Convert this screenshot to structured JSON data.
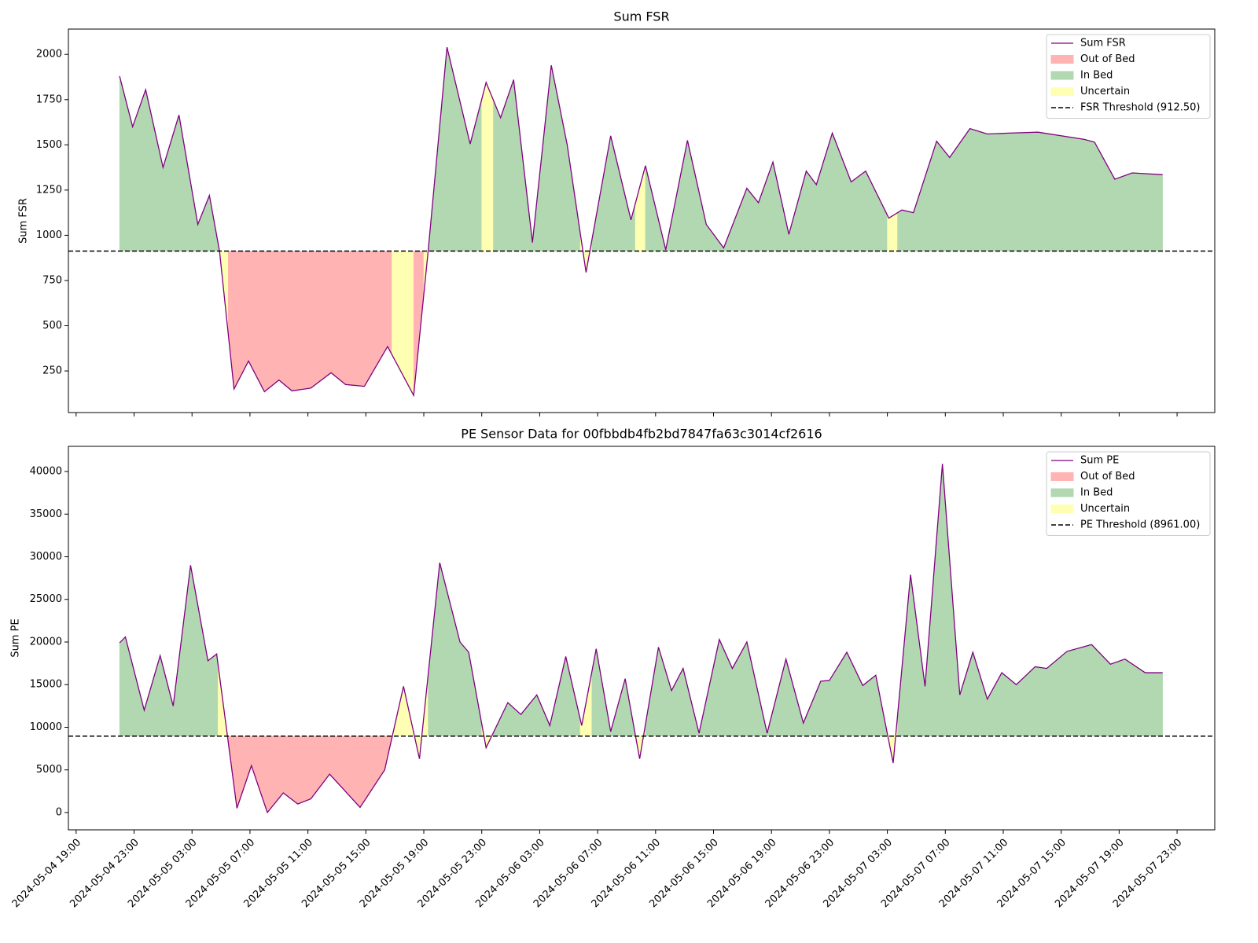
{
  "chart_data": [
    {
      "type": "line",
      "title": "Sum FSR",
      "ylabel": "Sum FSR",
      "x": [
        "2024-05-04 22:00",
        "2024-05-04 22:54",
        "2024-05-04 23:48",
        "2024-05-05 01:00",
        "2024-05-05 02:06",
        "2024-05-05 03:24",
        "2024-05-05 04:12",
        "2024-05-05 04:54",
        "2024-05-05 05:54",
        "2024-05-05 06:54",
        "2024-05-05 08:00",
        "2024-05-05 09:00",
        "2024-05-05 09:54",
        "2024-05-05 11:12",
        "2024-05-05 12:36",
        "2024-05-05 13:36",
        "2024-05-05 14:54",
        "2024-05-05 16:30",
        "2024-05-05 18:18",
        "2024-05-05 19:18",
        "2024-05-05 20:36",
        "2024-05-05 22:12",
        "2024-05-05 23:18",
        "2024-05-06 00:18",
        "2024-05-06 01:12",
        "2024-05-06 02:30",
        "2024-05-06 03:48",
        "2024-05-06 04:54",
        "2024-05-06 06:12",
        "2024-05-06 07:54",
        "2024-05-06 09:18",
        "2024-05-06 10:18",
        "2024-05-06 11:42",
        "2024-05-06 13:12",
        "2024-05-06 14:30",
        "2024-05-06 15:42",
        "2024-05-06 17:18",
        "2024-05-06 18:06",
        "2024-05-06 19:06",
        "2024-05-06 20:12",
        "2024-05-06 21:24",
        "2024-05-06 22:06",
        "2024-05-06 23:12",
        "2024-05-07 00:30",
        "2024-05-07 01:30",
        "2024-05-07 03:06",
        "2024-05-07 04:00",
        "2024-05-07 04:48",
        "2024-05-07 06:24",
        "2024-05-07 07:18",
        "2024-05-07 08:42",
        "2024-05-07 09:54",
        "2024-05-07 11:24",
        "2024-05-07 13:24",
        "2024-05-07 16:36",
        "2024-05-07 17:18",
        "2024-05-07 18:42",
        "2024-05-07 19:54",
        "2024-05-07 22:00"
      ],
      "series": [
        {
          "name": "Sum FSR",
          "color": "#800080",
          "values": [
            1880,
            1600,
            1805,
            1375,
            1665,
            1060,
            1220,
            912,
            150,
            305,
            135,
            200,
            140,
            155,
            240,
            175,
            165,
            385,
            115,
            912,
            2040,
            1505,
            1845,
            1650,
            1860,
            960,
            1940,
            1500,
            795,
            1550,
            1085,
            1385,
            920,
            1525,
            1060,
            930,
            1260,
            1180,
            1405,
            1005,
            1355,
            1280,
            1565,
            1295,
            1355,
            1095,
            1140,
            1125,
            1520,
            1430,
            1590,
            1560,
            1565,
            1570,
            1530,
            1515,
            1310,
            1345,
            1335
          ]
        }
      ],
      "threshold": {
        "value": 912.5,
        "label": "FSR Threshold (912.50)",
        "color": "#000000"
      },
      "region_states": [
        {
          "name": "Out of Bed",
          "color": "#ffb3b3"
        },
        {
          "name": "In Bed",
          "color": "#b2d8b2"
        },
        {
          "name": "Uncertain",
          "color": "#ffffb3"
        }
      ],
      "regions": [
        {
          "state": "In Bed",
          "start": "2024-05-04 22:00",
          "end": "2024-05-05 04:54"
        },
        {
          "state": "Uncertain",
          "start": "2024-05-05 04:54",
          "end": "2024-05-05 05:30"
        },
        {
          "state": "Out of Bed",
          "start": "2024-05-05 05:30",
          "end": "2024-05-05 16:48"
        },
        {
          "state": "Uncertain",
          "start": "2024-05-05 16:48",
          "end": "2024-05-05 18:18"
        },
        {
          "state": "Out of Bed",
          "start": "2024-05-05 18:18",
          "end": "2024-05-05 19:00"
        },
        {
          "state": "Uncertain",
          "start": "2024-05-05 19:00",
          "end": "2024-05-05 19:18"
        },
        {
          "state": "In Bed",
          "start": "2024-05-05 19:18",
          "end": "2024-05-05 23:00"
        },
        {
          "state": "Uncertain",
          "start": "2024-05-05 23:00",
          "end": "2024-05-05 23:48"
        },
        {
          "state": "In Bed",
          "start": "2024-05-05 23:48",
          "end": "2024-05-06 05:48"
        },
        {
          "state": "Uncertain",
          "start": "2024-05-06 05:48",
          "end": "2024-05-06 06:36"
        },
        {
          "state": "In Bed",
          "start": "2024-05-06 06:36",
          "end": "2024-05-06 09:36"
        },
        {
          "state": "Uncertain",
          "start": "2024-05-06 09:36",
          "end": "2024-05-06 10:18"
        },
        {
          "state": "In Bed",
          "start": "2024-05-06 10:18",
          "end": "2024-05-07 03:00"
        },
        {
          "state": "Uncertain",
          "start": "2024-05-07 03:00",
          "end": "2024-05-07 03:42"
        },
        {
          "state": "In Bed",
          "start": "2024-05-07 03:42",
          "end": "2024-05-07 22:00"
        }
      ],
      "xlim": [
        "2024-05-04 18:28",
        "2024-05-08 01:36"
      ],
      "xticks": [
        "2024-05-04 19:00",
        "2024-05-04 23:00",
        "2024-05-05 03:00",
        "2024-05-05 07:00",
        "2024-05-05 11:00",
        "2024-05-05 15:00",
        "2024-05-05 19:00",
        "2024-05-05 23:00",
        "2024-05-06 03:00",
        "2024-05-06 07:00",
        "2024-05-06 11:00",
        "2024-05-06 15:00",
        "2024-05-06 19:00",
        "2024-05-06 23:00",
        "2024-05-07 03:00",
        "2024-05-07 07:00",
        "2024-05-07 11:00",
        "2024-05-07 15:00",
        "2024-05-07 19:00",
        "2024-05-07 23:00"
      ],
      "ylim": [
        20,
        2140
      ],
      "yticks": [
        250,
        500,
        750,
        1000,
        1250,
        1500,
        1750,
        2000
      ],
      "legend": "upper right"
    },
    {
      "type": "line",
      "title": "PE Sensor Data for 00fbbdb4fb2bd7847fa63c3014cf2616",
      "ylabel": "Sum PE",
      "x": [
        "2024-05-04 22:00",
        "2024-05-04 22:24",
        "2024-05-04 23:42",
        "2024-05-05 00:48",
        "2024-05-05 01:42",
        "2024-05-05 02:54",
        "2024-05-05 04:06",
        "2024-05-05 04:42",
        "2024-05-05 06:06",
        "2024-05-05 07:06",
        "2024-05-05 08:12",
        "2024-05-05 09:18",
        "2024-05-05 10:18",
        "2024-05-05 11:12",
        "2024-05-05 12:30",
        "2024-05-05 14:36",
        "2024-05-05 16:18",
        "2024-05-05 17:36",
        "2024-05-05 18:42",
        "2024-05-05 20:06",
        "2024-05-05 21:30",
        "2024-05-05 22:06",
        "2024-05-05 23:18",
        "2024-05-06 00:48",
        "2024-05-06 01:42",
        "2024-05-06 02:48",
        "2024-05-06 03:42",
        "2024-05-06 04:48",
        "2024-05-06 05:54",
        "2024-05-06 06:54",
        "2024-05-06 07:54",
        "2024-05-06 08:54",
        "2024-05-06 09:54",
        "2024-05-06 11:12",
        "2024-05-06 12:06",
        "2024-05-06 12:54",
        "2024-05-06 14:00",
        "2024-05-06 15:24",
        "2024-05-06 16:18",
        "2024-05-06 17:18",
        "2024-05-06 18:42",
        "2024-05-06 20:00",
        "2024-05-06 21:12",
        "2024-05-06 22:24",
        "2024-05-06 23:00",
        "2024-05-07 00:12",
        "2024-05-07 01:18",
        "2024-05-07 02:12",
        "2024-05-07 03:24",
        "2024-05-07 04:36",
        "2024-05-07 05:36",
        "2024-05-07 06:48",
        "2024-05-07 08:00",
        "2024-05-07 08:54",
        "2024-05-07 09:54",
        "2024-05-07 10:54",
        "2024-05-07 11:54",
        "2024-05-07 13:12",
        "2024-05-07 14:00",
        "2024-05-07 15:24",
        "2024-05-07 17:06",
        "2024-05-07 18:24",
        "2024-05-07 19:24",
        "2024-05-07 20:48",
        "2024-05-07 22:00"
      ],
      "series": [
        {
          "name": "Sum PE",
          "color": "#800080",
          "values": [
            19900,
            20600,
            12000,
            18400,
            12500,
            29000,
            17800,
            18600,
            500,
            5500,
            0,
            2300,
            1000,
            1600,
            4500,
            600,
            5000,
            14800,
            6300,
            29300,
            20000,
            18800,
            7600,
            12900,
            11500,
            13800,
            10200,
            18300,
            10200,
            19200,
            9500,
            15700,
            6300,
            19400,
            14300,
            16900,
            9300,
            20300,
            16900,
            20000,
            9300,
            18000,
            10500,
            15400,
            15500,
            18800,
            14900,
            16100,
            5800,
            27900,
            14800,
            40900,
            13800,
            18800,
            13300,
            16400,
            15000,
            17100,
            16900,
            18900,
            19700,
            17400,
            18000,
            16400,
            16400
          ]
        }
      ],
      "threshold": {
        "value": 8961,
        "label": "PE Threshold (8961.00)",
        "color": "#000000"
      },
      "region_states": [
        {
          "name": "Out of Bed",
          "color": "#ffb3b3"
        },
        {
          "name": "In Bed",
          "color": "#b2d8b2"
        },
        {
          "name": "Uncertain",
          "color": "#ffffb3"
        }
      ],
      "regions": [
        {
          "state": "In Bed",
          "start": "2024-05-04 22:00",
          "end": "2024-05-05 04:48"
        },
        {
          "state": "Uncertain",
          "start": "2024-05-05 04:48",
          "end": "2024-05-05 05:30"
        },
        {
          "state": "Out of Bed",
          "start": "2024-05-05 05:30",
          "end": "2024-05-05 16:48"
        },
        {
          "state": "Uncertain",
          "start": "2024-05-05 16:48",
          "end": "2024-05-05 19:18"
        },
        {
          "state": "In Bed",
          "start": "2024-05-05 19:18",
          "end": "2024-05-05 23:00"
        },
        {
          "state": "Uncertain",
          "start": "2024-05-05 23:00",
          "end": "2024-05-05 23:48"
        },
        {
          "state": "In Bed",
          "start": "2024-05-05 23:48",
          "end": "2024-05-06 05:48"
        },
        {
          "state": "Uncertain",
          "start": "2024-05-06 05:48",
          "end": "2024-05-06 06:36"
        },
        {
          "state": "In Bed",
          "start": "2024-05-06 06:36",
          "end": "2024-05-06 09:36"
        },
        {
          "state": "Uncertain",
          "start": "2024-05-06 09:36",
          "end": "2024-05-06 10:18"
        },
        {
          "state": "In Bed",
          "start": "2024-05-06 10:18",
          "end": "2024-05-07 03:00"
        },
        {
          "state": "Uncertain",
          "start": "2024-05-07 03:00",
          "end": "2024-05-07 03:42"
        },
        {
          "state": "In Bed",
          "start": "2024-05-07 03:42",
          "end": "2024-05-07 22:00"
        }
      ],
      "xlim": [
        "2024-05-04 18:28",
        "2024-05-08 01:36"
      ],
      "xticks": [
        "2024-05-04 19:00",
        "2024-05-04 23:00",
        "2024-05-05 03:00",
        "2024-05-05 07:00",
        "2024-05-05 11:00",
        "2024-05-05 15:00",
        "2024-05-05 19:00",
        "2024-05-05 23:00",
        "2024-05-06 03:00",
        "2024-05-06 07:00",
        "2024-05-06 11:00",
        "2024-05-06 15:00",
        "2024-05-06 19:00",
        "2024-05-06 23:00",
        "2024-05-07 03:00",
        "2024-05-07 07:00",
        "2024-05-07 11:00",
        "2024-05-07 15:00",
        "2024-05-07 19:00",
        "2024-05-07 23:00"
      ],
      "ylim": [
        -2030,
        42950
      ],
      "yticks": [
        0,
        5000,
        10000,
        15000,
        20000,
        25000,
        30000,
        35000,
        40000
      ],
      "legend": "upper right",
      "xtick_labels": true
    }
  ]
}
